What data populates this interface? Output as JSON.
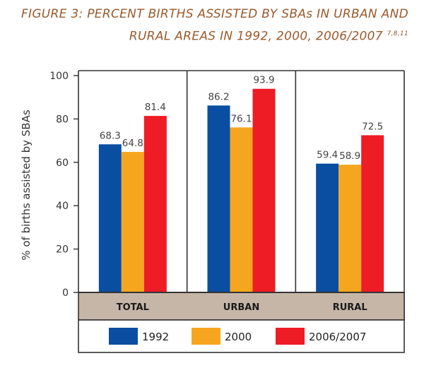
{
  "title": {
    "line1": "FIGURE 3: PERCENT BIRTHS ASSISTED BY SBAs IN URBAN AND",
    "line2": "RURAL AREAS IN 1992, 2000, 2006/2007",
    "superscript": "7,8,11"
  },
  "colors": {
    "title": "#9a5a2a",
    "band": "#c6b6a8",
    "s1992": "#0a4ea2",
    "s2000": "#f6a61e",
    "s2006": "#ee1c25"
  },
  "chart_data": {
    "type": "bar",
    "categories": [
      "TOTAL",
      "URBAN",
      "RURAL"
    ],
    "series": [
      {
        "name": "1992",
        "values": [
          68.3,
          86.2,
          59.4
        ]
      },
      {
        "name": "2000",
        "values": [
          64.8,
          76.1,
          58.9
        ]
      },
      {
        "name": "2006/2007",
        "values": [
          81.4,
          93.9,
          72.5
        ]
      }
    ],
    "value_labels": [
      [
        "68.3",
        "86.2",
        "59.4"
      ],
      [
        "64.8",
        "76.1",
        "58.9"
      ],
      [
        "81.4",
        "93.9",
        "72.5"
      ]
    ],
    "ylabel": "% of births assisted by SBAs",
    "xlabel": "",
    "ylim": [
      0,
      100
    ],
    "yticks": [
      0,
      20,
      40,
      60,
      80,
      100
    ],
    "grid": false,
    "legend": "bottom"
  }
}
